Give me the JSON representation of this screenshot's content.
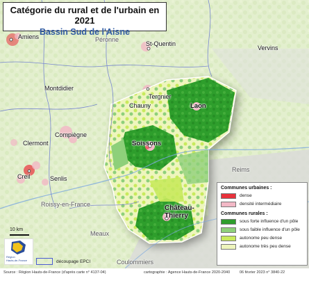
{
  "title": "Catégorie du rural et de l'urbain en 2021",
  "subtitle": "Bassin Sud de l'Aisne",
  "colors": {
    "dense": "#e8313b",
    "intermediaire": "#f2b8c6",
    "forte": "#2e9e2c",
    "faible": "#8ed07a",
    "autonome_dense": "#c8ea5c",
    "autonome_tres_peu": "#eef5bd",
    "epci": "#4b5bd2"
  },
  "places": [
    {
      "id": "amiens",
      "name": "Amiens"
    },
    {
      "id": "peronne",
      "name": "Péronne"
    },
    {
      "id": "st-quentin",
      "name": "St-Quentin"
    },
    {
      "id": "vervins",
      "name": "Vervins"
    },
    {
      "id": "montdidier",
      "name": "Montdidier"
    },
    {
      "id": "tergnier",
      "name": "Tergnier"
    },
    {
      "id": "chauny",
      "name": "Chauny"
    },
    {
      "id": "laon",
      "name": "Laon"
    },
    {
      "id": "compiegne",
      "name": "Compiègne"
    },
    {
      "id": "clermont",
      "name": "Clermont"
    },
    {
      "id": "soissons",
      "name": "Soissons"
    },
    {
      "id": "reims",
      "name": "Reims"
    },
    {
      "id": "creil",
      "name": "Creil"
    },
    {
      "id": "senlis",
      "name": "Senlis"
    },
    {
      "id": "chateau-thierry",
      "name": "Château-\nThierry"
    },
    {
      "id": "roissy",
      "name": "Roissy-en-France"
    },
    {
      "id": "meaux",
      "name": "Meaux"
    },
    {
      "id": "coulommiers",
      "name": "Coulommiers"
    }
  ],
  "legend": {
    "urban_heading": "Communes urbaines :",
    "urban_items": [
      {
        "label": "dense",
        "color": "#e8313b"
      },
      {
        "label": "densité intermédiaire",
        "color": "#f2b8c6"
      }
    ],
    "rural_heading": "Communes rurales :",
    "rural_items": [
      {
        "label": "sous forte influence d'un pôle",
        "color": "#2e9e2c"
      },
      {
        "label": "sous faible influence d'un pôle",
        "color": "#8ed07a"
      },
      {
        "label": "autonome peu dense",
        "color": "#c8ea5c"
      },
      {
        "label": "autonome très peu dense",
        "color": "#eef5bd"
      }
    ],
    "epci_label": "découpage EPCI"
  },
  "scale_label": "10 km",
  "logo_text": "Région\nHauts-de-France",
  "footer": {
    "source": "Source : Région Hauts-de-France (d'après carte n° 4137-04)",
    "cartography": "cartographie : Agence Hauts-de-France 2020-2040",
    "date": "06 février 2023 n° 3840-22"
  }
}
